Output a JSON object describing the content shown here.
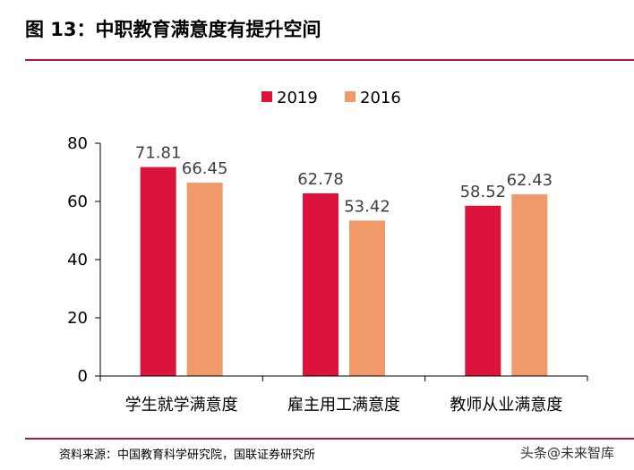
{
  "header": {
    "title": "图 13：中职教育满意度有提升空间"
  },
  "footer": {
    "source": "资料来源：中国教育科学研究院，国联证券研究所",
    "watermark": "头条@未来智库"
  },
  "colors": {
    "rule": "#b5173c",
    "series_2019": "#dc143c",
    "series_2016": "#f09a6a"
  },
  "chart_data": {
    "type": "bar",
    "title": "",
    "xlabel": "",
    "ylabel": "",
    "categories": [
      "学生就学满意度",
      "雇主用工满意度",
      "教师从业满意度"
    ],
    "series": [
      {
        "name": "2019",
        "values": [
          71.81,
          62.78,
          58.52
        ],
        "labels": [
          "71.81",
          "62.78",
          "58.52"
        ]
      },
      {
        "name": "2016",
        "values": [
          66.45,
          53.42,
          62.43
        ],
        "labels": [
          "66.45",
          "53.42",
          "62.43"
        ]
      }
    ],
    "ylim": [
      0,
      80
    ],
    "yticks": [
      "0",
      "20",
      "40",
      "60",
      "80"
    ],
    "grid": false,
    "legend": "top-center"
  }
}
